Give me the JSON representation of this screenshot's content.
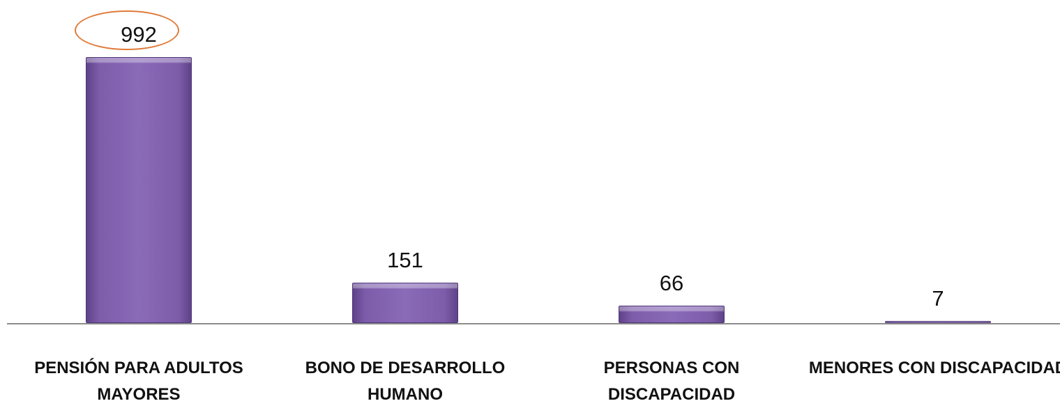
{
  "chart_data": {
    "type": "bar",
    "categories": [
      "PENSIÓN PARA ADULTOS MAYORES",
      "BONO DE DESARROLLO HUMANO",
      "PERSONAS CON DISCAPACIDAD",
      "MENORES CON DISCAPACIDAD"
    ],
    "values": [
      992,
      151,
      66,
      7
    ],
    "color": "#7d5caa",
    "ylim": [
      0,
      992
    ]
  }
}
